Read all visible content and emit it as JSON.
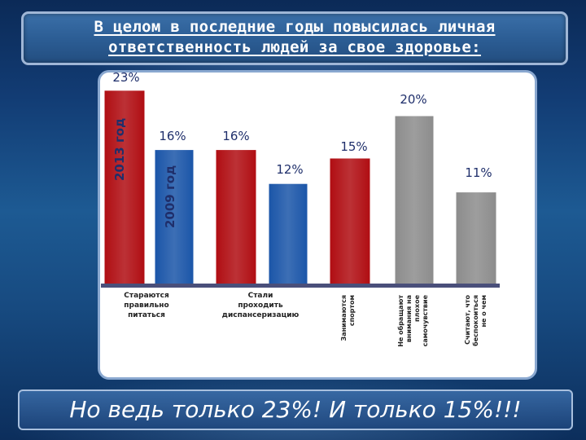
{
  "title": {
    "line1": "В целом в последние годы повысилась личная",
    "line2": "ответственность людей за свое здоровье:"
  },
  "bottom_text": "Но ведь только 23%! И только 15%!!!",
  "chart_data": {
    "type": "bar",
    "ylim": [
      0,
      25
    ],
    "series_labels": [
      "2013 год",
      "2009 год"
    ],
    "bars": [
      {
        "value": 23,
        "label": "23%",
        "color": "#b00d12"
      },
      {
        "value": 16,
        "label": "16%",
        "color": "#1a55a8"
      },
      {
        "value": 16,
        "label": "16%",
        "color": "#b00d12"
      },
      {
        "value": 12,
        "label": "12%",
        "color": "#1a55a8"
      },
      {
        "value": 15,
        "label": "15%",
        "color": "#b00d12"
      },
      {
        "value": 20,
        "label": "20%",
        "color": "#8c8c8c"
      },
      {
        "value": 11,
        "label": "11%",
        "color": "#8c8c8c"
      }
    ],
    "categories": [
      {
        "lines": [
          "Стараются",
          "правильно",
          "питаться"
        ],
        "orientation": "horizontal"
      },
      {
        "lines": [
          "Стали",
          "проходить",
          "диспансеризацию"
        ],
        "orientation": "horizontal"
      },
      {
        "lines": [
          "Занимаются",
          "спортом"
        ],
        "orientation": "vertical"
      },
      {
        "lines": [
          "Не обращают",
          "внимания на",
          "плохое",
          "самочувствие"
        ],
        "orientation": "vertical"
      },
      {
        "lines": [
          "Считают, что",
          "беспокоиться",
          "не о чем"
        ],
        "orientation": "vertical"
      }
    ]
  }
}
